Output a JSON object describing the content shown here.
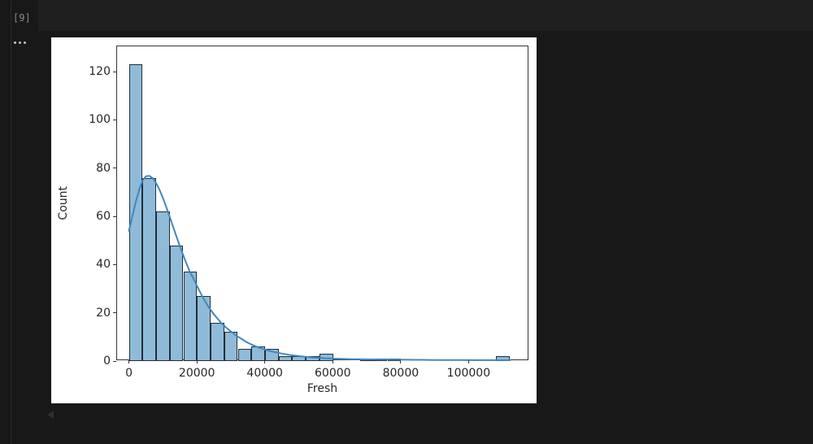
{
  "app": {
    "execution_count": "[9]",
    "colors": {
      "page_bg": "#181818",
      "editor_bg": "#1f1f1f",
      "divider": "#2b2b2b",
      "exec_count_text": "#8a8a8a",
      "kebab_dots": "#c2c2c2",
      "output_arrow": "#2f2f2f",
      "figure_bg": "#ffffff"
    }
  },
  "chart_data": {
    "type": "bar",
    "subtype": "histogram-with-kde",
    "title": "",
    "xlabel": "Fresh",
    "ylabel": "Count",
    "x_ticks": [
      0,
      20000,
      40000,
      60000,
      80000,
      100000
    ],
    "y_ticks": [
      0,
      20,
      40,
      60,
      80,
      100,
      120
    ],
    "xlim": [
      -3500,
      117850
    ],
    "ylim": [
      0,
      130.5
    ],
    "grid": false,
    "legend": "none",
    "bin_start": 0,
    "bin_width": 4005,
    "counts": [
      123,
      76,
      62,
      48,
      37,
      27,
      16,
      12,
      5,
      6,
      5,
      2,
      2,
      2,
      3,
      0,
      0,
      1,
      1,
      1,
      0,
      0,
      0,
      0,
      0,
      0,
      0,
      2
    ],
    "kde_points": [
      [
        0,
        54
      ],
      [
        1000,
        60
      ],
      [
        2000,
        66
      ],
      [
        3000,
        71
      ],
      [
        4000,
        74.8
      ],
      [
        5000,
        76.6
      ],
      [
        6000,
        76.8
      ],
      [
        7000,
        75.8
      ],
      [
        8000,
        73.8
      ],
      [
        9000,
        71
      ],
      [
        10000,
        67.6
      ],
      [
        11000,
        63.8
      ],
      [
        12000,
        59.8
      ],
      [
        13000,
        55.7
      ],
      [
        14000,
        51.6
      ],
      [
        15000,
        47.6
      ],
      [
        16000,
        43.8
      ],
      [
        17000,
        40.2
      ],
      [
        18000,
        36.8
      ],
      [
        19000,
        34.2
      ],
      [
        20000,
        31.2
      ],
      [
        21000,
        28.4
      ],
      [
        22000,
        25.8
      ],
      [
        23000,
        23.4
      ],
      [
        24000,
        21.3
      ],
      [
        25000,
        19.4
      ],
      [
        26000,
        17.7
      ],
      [
        27000,
        16.1
      ],
      [
        28000,
        14.7
      ],
      [
        29000,
        13.4
      ],
      [
        30000,
        12.3
      ],
      [
        31000,
        11.2
      ],
      [
        32000,
        10.2
      ],
      [
        33000,
        9.3
      ],
      [
        34000,
        8.4
      ],
      [
        35000,
        7.6
      ],
      [
        36000,
        6.9
      ],
      [
        37000,
        6.3
      ],
      [
        38000,
        5.7
      ],
      [
        39000,
        5.2
      ],
      [
        40000,
        4.8
      ],
      [
        41000,
        4.4
      ],
      [
        42000,
        4.0
      ],
      [
        43000,
        3.7
      ],
      [
        44000,
        3.4
      ],
      [
        45000,
        3.1
      ],
      [
        46000,
        2.85
      ],
      [
        47000,
        2.6
      ],
      [
        48000,
        2.4
      ],
      [
        50000,
        2.05
      ],
      [
        52000,
        1.75
      ],
      [
        54000,
        1.5
      ],
      [
        56000,
        1.3
      ],
      [
        58000,
        1.12
      ],
      [
        60000,
        1.0
      ],
      [
        63000,
        0.87
      ],
      [
        66000,
        0.78
      ],
      [
        70000,
        0.7
      ],
      [
        74000,
        0.64
      ],
      [
        78000,
        0.58
      ],
      [
        82000,
        0.53
      ],
      [
        86000,
        0.49
      ],
      [
        90000,
        0.45
      ],
      [
        94000,
        0.42
      ],
      [
        98000,
        0.4
      ],
      [
        102000,
        0.38
      ],
      [
        106000,
        0.37
      ],
      [
        112150,
        0.35
      ]
    ],
    "colors": {
      "bar_fill": "#8fbbd9",
      "bar_edge": "#232d36",
      "kde_line": "#4087c0",
      "axis_text": "#262626",
      "tick_mark": "#333333",
      "spine": "#333333"
    }
  }
}
